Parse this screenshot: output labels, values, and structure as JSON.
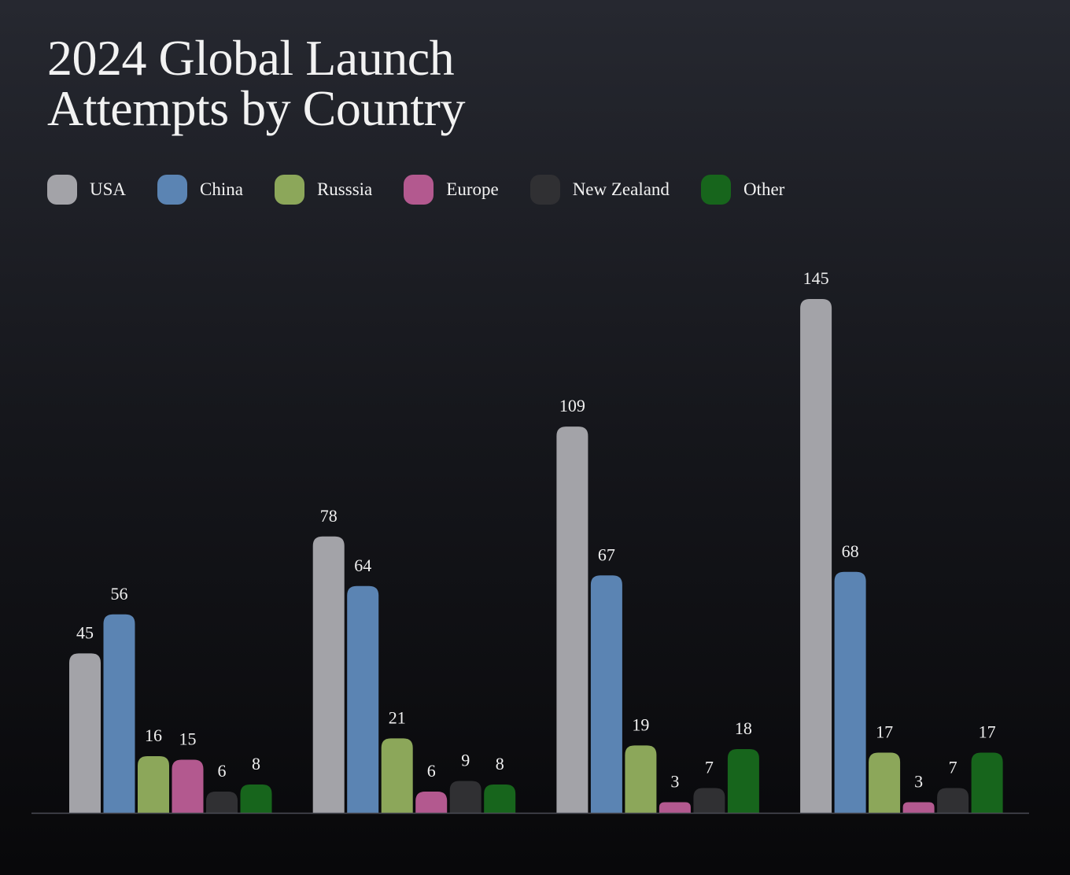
{
  "chart_data": {
    "type": "bar",
    "title": "2024 Global Launch Attempts by Country",
    "categories": [
      null,
      null,
      null,
      null
    ],
    "series": [
      {
        "name": "USA",
        "color": "#a3a3a8",
        "values": [
          45,
          78,
          109,
          145
        ]
      },
      {
        "name": "China",
        "color": "#5b84b3",
        "values": [
          56,
          64,
          67,
          68
        ]
      },
      {
        "name": "Russsia",
        "color": "#8ca75a",
        "values": [
          16,
          21,
          19,
          17
        ]
      },
      {
        "name": "Europe",
        "color": "#b3598f",
        "values": [
          15,
          6,
          3,
          3
        ]
      },
      {
        "name": "New Zealand",
        "color": "#303033",
        "values": [
          6,
          9,
          7,
          7
        ]
      },
      {
        "name": "Other",
        "color": "#17651c",
        "values": [
          8,
          8,
          18,
          17
        ]
      }
    ]
  }
}
